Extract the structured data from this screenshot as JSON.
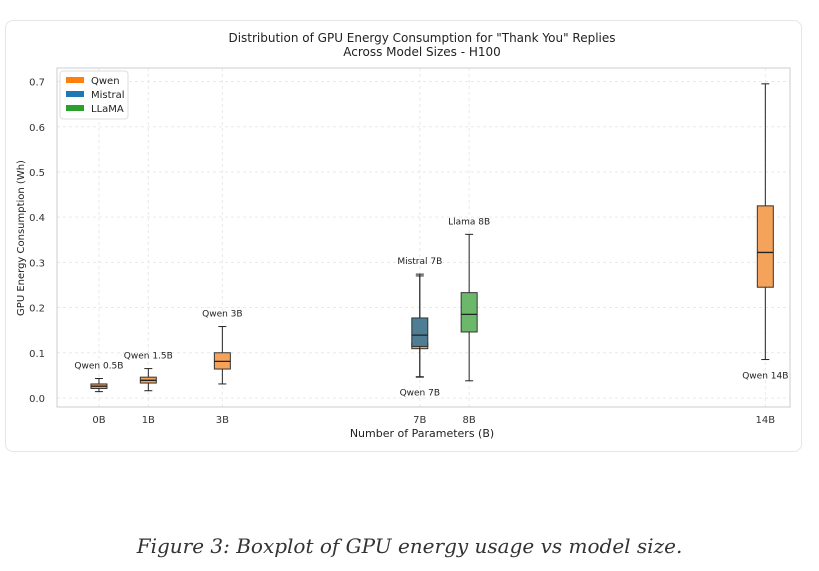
{
  "chart_data": {
    "type": "box",
    "title": "Distribution of GPU Energy Consumption for \"Thank You\" Replies",
    "subtitle": "Across Model Sizes - H100",
    "xlabel": "Number of Parameters (B)",
    "ylabel": "GPU Energy Consumption (Wh)",
    "xlim": [
      -0.35,
      14.5
    ],
    "ylim": [
      -0.02,
      0.73
    ],
    "xticks": [
      {
        "value": 0.5,
        "label": "0B"
      },
      {
        "value": 1.5,
        "label": "1B"
      },
      {
        "value": 3,
        "label": "3B"
      },
      {
        "value": 7,
        "label": "7B"
      },
      {
        "value": 8,
        "label": "8B"
      },
      {
        "value": 14,
        "label": "14B"
      }
    ],
    "yticks": [
      0.0,
      0.1,
      0.2,
      0.3,
      0.4,
      0.5,
      0.6,
      0.7
    ],
    "grid": true,
    "legend_position": "top-left",
    "series": [
      {
        "name": "Qwen",
        "color": "#ff7f0e"
      },
      {
        "name": "Mistral",
        "color": "#1f77b4"
      },
      {
        "name": "LLaMA",
        "color": "#2ca02c"
      }
    ],
    "boxes": [
      {
        "label": "Qwen 0.5B",
        "series": "Qwen",
        "x": 0.5,
        "whisker_low": 0.014,
        "q1": 0.021,
        "median": 0.026,
        "q3": 0.031,
        "whisker_high": 0.043,
        "fill": "#f5a35a",
        "label_side": "above"
      },
      {
        "label": "Qwen 1.5B",
        "series": "Qwen",
        "x": 1.5,
        "whisker_low": 0.016,
        "q1": 0.033,
        "median": 0.039,
        "q3": 0.046,
        "whisker_high": 0.065,
        "fill": "#f5a35a",
        "label_side": "above"
      },
      {
        "label": "Qwen 3B",
        "series": "Qwen",
        "x": 3,
        "whisker_low": 0.031,
        "q1": 0.064,
        "median": 0.081,
        "q3": 0.1,
        "whisker_high": 0.158,
        "fill": "#f5a35a",
        "label_side": "above"
      },
      {
        "label": "Qwen 7B",
        "series": "Qwen",
        "x": 7,
        "whisker_low": 0.047,
        "q1": 0.109,
        "median": 0.115,
        "q3": 0.121,
        "whisker_high": 0.27,
        "fill": "#f5a35a",
        "label_side": "below"
      },
      {
        "label": "Mistral 7B",
        "series": "Mistral",
        "x": 7,
        "whisker_low": 0.046,
        "q1": 0.114,
        "median": 0.139,
        "q3": 0.177,
        "whisker_high": 0.274,
        "fill": "#4f7d94",
        "label_side": "above"
      },
      {
        "label": "Llama 8B",
        "series": "LLaMA",
        "x": 8,
        "whisker_low": 0.038,
        "q1": 0.146,
        "median": 0.185,
        "q3": 0.233,
        "whisker_high": 0.362,
        "fill": "#6bb86b",
        "label_side": "above"
      },
      {
        "label": "Qwen 14B",
        "series": "Qwen",
        "x": 14,
        "whisker_low": 0.085,
        "q1": 0.245,
        "median": 0.322,
        "q3": 0.425,
        "whisker_high": 0.695,
        "fill": "#f5a35a",
        "label_side": "below"
      }
    ]
  },
  "caption": "Figure 3: Boxplot of GPU energy usage vs model size."
}
